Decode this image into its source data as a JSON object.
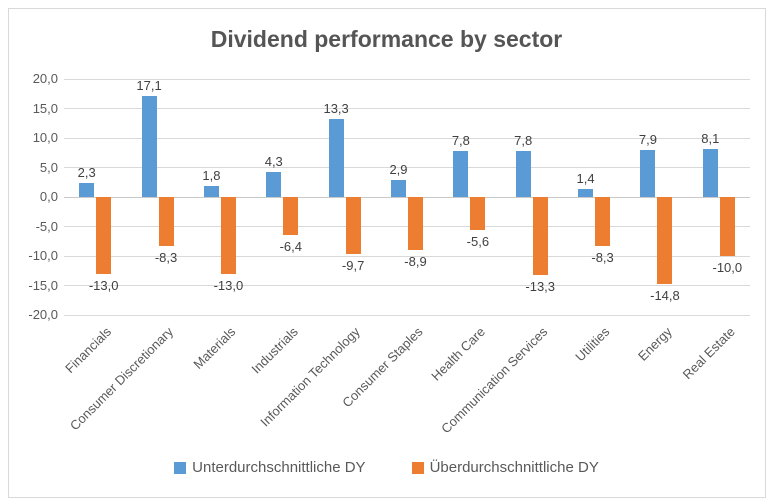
{
  "window": {
    "background_color": "#ffffff",
    "border_color": "#d9d9d9"
  },
  "legend": {
    "series1_label": "Unterdurchschnittliche DY",
    "series2_label": "Überdurchschnittliche DY"
  },
  "chart_data": {
    "type": "bar",
    "title": "Dividend performance by sector",
    "categories": [
      "Financials",
      "Consumer Discretionary",
      "Materials",
      "Industrials",
      "Information Technology",
      "Consumer Staples",
      "Health Care",
      "Communication Services",
      "Utilities",
      "Energy",
      "Real Estate"
    ],
    "series": [
      {
        "name": "Unterdurchschnittliche DY",
        "color": "#5b9bd5",
        "values": [
          2.3,
          17.1,
          1.8,
          4.3,
          13.3,
          2.9,
          7.8,
          7.8,
          1.4,
          7.9,
          8.1
        ]
      },
      {
        "name": "Überdurchschnittliche DY",
        "color": "#ed7d31",
        "values": [
          -13.0,
          -8.3,
          -13.0,
          -6.4,
          -9.7,
          -8.9,
          -5.6,
          -13.3,
          -8.3,
          -14.8,
          -10.0
        ]
      }
    ],
    "ylim": [
      -20,
      20
    ],
    "ytick_step": 5,
    "ytick_labels": [
      "20,0",
      "15,0",
      "10,0",
      "5,0",
      "0,0",
      "-5,0",
      "-10,0",
      "-15,0",
      "-20,0"
    ],
    "number_format": "decimal-comma",
    "data_labels": true,
    "grid": true,
    "x_label_rotation": -45,
    "legend_position": "bottom",
    "gridline_color": "#d9d9d9",
    "axis_line_color": "#c9c9c9",
    "title_color": "#555555",
    "tick_label_color": "#595959",
    "data_label_color": "#404040",
    "legend_text_color": "#595959"
  }
}
